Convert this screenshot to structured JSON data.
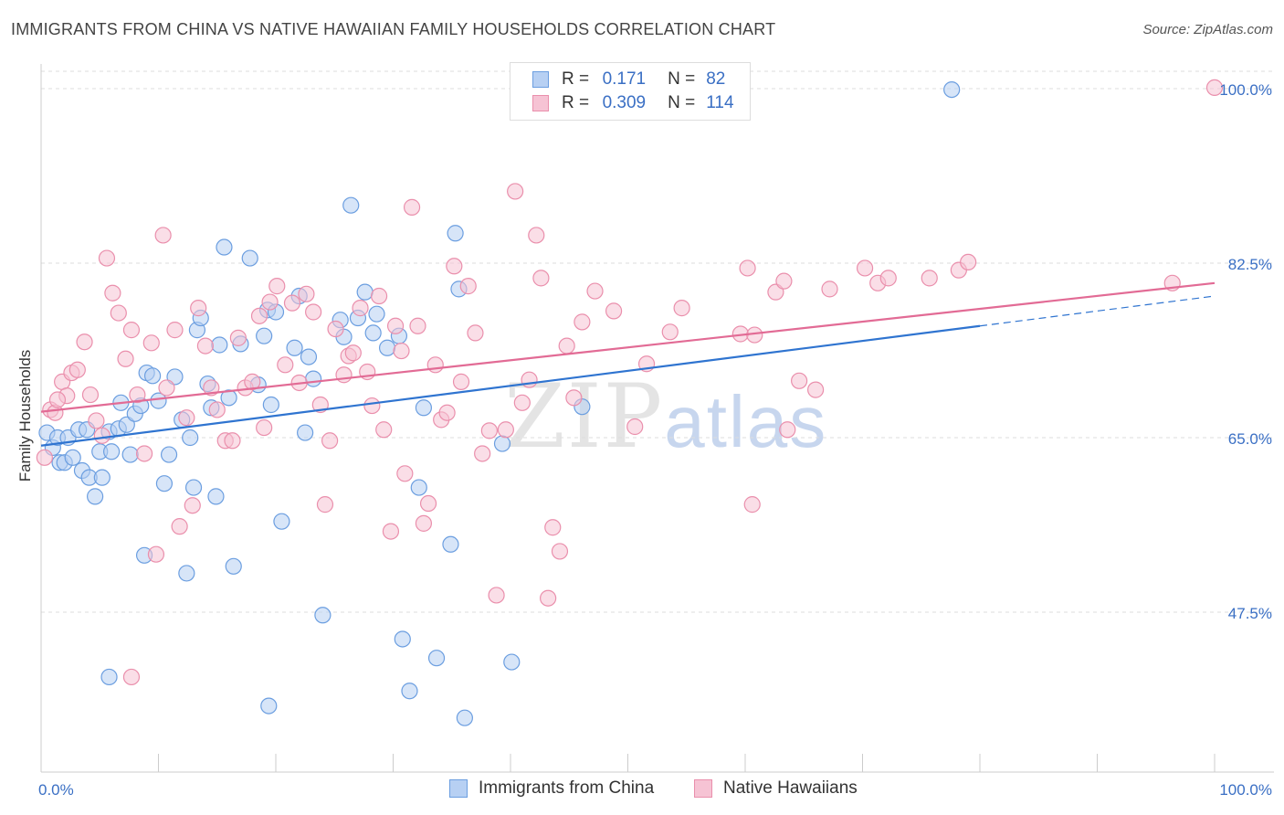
{
  "title": "IMMIGRANTS FROM CHINA VS NATIVE HAWAIIAN FAMILY HOUSEHOLDS CORRELATION CHART",
  "source": "Source: ZipAtlas.com",
  "watermark": {
    "zip": "ZIP",
    "atlas": "atlas"
  },
  "colors": {
    "blue": "#6b9ee0",
    "blue_fill": "#b7d0f3",
    "blue_line": "#2f74d0",
    "pink": "#ea8fac",
    "pink_fill": "#f6c3d4",
    "pink_line": "#e26b95",
    "axis_text": "#3a6fc4",
    "grid": "#dddddd"
  },
  "legend": {
    "r_label": "R =",
    "n_label": "N =",
    "rows": [
      {
        "r": "0.171",
        "n": "82"
      },
      {
        "r": "0.309",
        "n": "114"
      }
    ]
  },
  "chart_data": {
    "type": "scatter",
    "title": "IMMIGRANTS FROM CHINA VS NATIVE HAWAIIAN FAMILY HOUSEHOLDS CORRELATION CHART",
    "xlabel": "",
    "ylabel": "Family Households",
    "xlim": [
      0,
      100
    ],
    "ylim": [
      31,
      101
    ],
    "x_tick_labels": [
      "0.0%",
      "100.0%"
    ],
    "y_ticks": [
      47.5,
      65.0,
      82.5,
      100.0
    ],
    "y_tick_labels": [
      "47.5%",
      "65.0%",
      "82.5%",
      "100.0%"
    ],
    "grid": true,
    "legend_position": "top-center",
    "series": [
      {
        "name": "Immigrants from China",
        "color": "blue",
        "trend": {
          "x0": 0,
          "y0": 64.2,
          "x1": 80,
          "y1": 76.2,
          "dash_to_x": 100,
          "dash_y": 79.2
        },
        "points": [
          [
            0.5,
            65.5
          ],
          [
            1,
            64
          ],
          [
            1.4,
            65
          ],
          [
            1.6,
            62.5
          ],
          [
            2,
            62.5
          ],
          [
            2.3,
            65
          ],
          [
            2.7,
            63
          ],
          [
            3.2,
            65.8
          ],
          [
            3.5,
            61.7
          ],
          [
            3.9,
            65.8
          ],
          [
            4.1,
            61
          ],
          [
            4.6,
            59.1
          ],
          [
            5,
            63.6
          ],
          [
            5.2,
            61
          ],
          [
            5.8,
            65.6
          ],
          [
            6,
            63.6
          ],
          [
            6.6,
            65.9
          ],
          [
            6.8,
            68.5
          ],
          [
            7.3,
            66.3
          ],
          [
            7.6,
            63.3
          ],
          [
            8,
            67.4
          ],
          [
            8.5,
            68.2
          ],
          [
            8.8,
            53.2
          ],
          [
            9,
            71.5
          ],
          [
            9.5,
            71.2
          ],
          [
            10,
            68.7
          ],
          [
            10.5,
            60.4
          ],
          [
            10.9,
            63.3
          ],
          [
            11.4,
            71.1
          ],
          [
            12,
            66.8
          ],
          [
            12.4,
            51.4
          ],
          [
            12.7,
            65
          ],
          [
            13,
            60
          ],
          [
            13.3,
            75.8
          ],
          [
            13.6,
            77
          ],
          [
            14.2,
            70.4
          ],
          [
            14.5,
            68
          ],
          [
            14.9,
            59.1
          ],
          [
            15.2,
            74.3
          ],
          [
            15.6,
            84.1
          ],
          [
            16,
            69
          ],
          [
            16.4,
            52.1
          ],
          [
            17,
            74.4
          ],
          [
            17.8,
            83
          ],
          [
            18.5,
            70.3
          ],
          [
            19,
            75.2
          ],
          [
            19.3,
            77.8
          ],
          [
            19.6,
            68.3
          ],
          [
            20,
            77.6
          ],
          [
            20.5,
            56.6
          ],
          [
            21.6,
            74
          ],
          [
            22,
            79.2
          ],
          [
            22.5,
            65.5
          ],
          [
            22.8,
            73.1
          ],
          [
            23.2,
            70.9
          ],
          [
            24,
            47.2
          ],
          [
            25.5,
            76.8
          ],
          [
            25.8,
            75.1
          ],
          [
            26.4,
            88.3
          ],
          [
            27,
            77
          ],
          [
            27.6,
            79.6
          ],
          [
            28.3,
            75.5
          ],
          [
            28.6,
            77.4
          ],
          [
            29.5,
            74
          ],
          [
            30.5,
            75.2
          ],
          [
            30.8,
            44.8
          ],
          [
            31.4,
            39.6
          ],
          [
            32.2,
            60
          ],
          [
            32.6,
            68
          ],
          [
            33.7,
            42.9
          ],
          [
            34.9,
            54.3
          ],
          [
            35.3,
            85.5
          ],
          [
            35.6,
            79.9
          ],
          [
            36.1,
            36.9
          ],
          [
            39.3,
            64.4
          ],
          [
            40.1,
            42.5
          ],
          [
            46.1,
            68.1
          ],
          [
            77.6,
            99.9
          ],
          [
            5.8,
            41
          ],
          [
            19.4,
            38.1
          ]
        ]
      },
      {
        "name": "Native Hawaiians",
        "color": "pink",
        "trend": {
          "x0": 0,
          "y0": 67.6,
          "x1": 100,
          "y1": 80.5
        },
        "points": [
          [
            0.3,
            63
          ],
          [
            0.8,
            67.8
          ],
          [
            1.2,
            67.5
          ],
          [
            1.8,
            70.6
          ],
          [
            2.2,
            69.2
          ],
          [
            2.6,
            71.5
          ],
          [
            3.1,
            71.8
          ],
          [
            3.7,
            74.6
          ],
          [
            4.2,
            69.3
          ],
          [
            4.7,
            66.7
          ],
          [
            5.2,
            65.2
          ],
          [
            5.6,
            83
          ],
          [
            6.1,
            79.5
          ],
          [
            6.6,
            77.5
          ],
          [
            7.2,
            72.9
          ],
          [
            7.7,
            75.8
          ],
          [
            8.2,
            69.3
          ],
          [
            8.8,
            63.4
          ],
          [
            9.4,
            74.5
          ],
          [
            9.8,
            53.3
          ],
          [
            10.4,
            85.3
          ],
          [
            10.7,
            70
          ],
          [
            11.4,
            75.8
          ],
          [
            11.8,
            56.1
          ],
          [
            12.4,
            67
          ],
          [
            12.9,
            58.2
          ],
          [
            13.4,
            78
          ],
          [
            14,
            74.2
          ],
          [
            14.5,
            70
          ],
          [
            15,
            67.8
          ],
          [
            15.7,
            64.7
          ],
          [
            16.3,
            64.7
          ],
          [
            16.8,
            75
          ],
          [
            17.4,
            70
          ],
          [
            18,
            70.6
          ],
          [
            18.6,
            77.2
          ],
          [
            19,
            66
          ],
          [
            19.5,
            78.6
          ],
          [
            20.1,
            80.2
          ],
          [
            20.8,
            72.3
          ],
          [
            21.4,
            78.5
          ],
          [
            22,
            70.5
          ],
          [
            22.6,
            79.4
          ],
          [
            23.2,
            77.6
          ],
          [
            23.8,
            68.3
          ],
          [
            24.2,
            58.3
          ],
          [
            24.6,
            64.7
          ],
          [
            25.1,
            75.9
          ],
          [
            25.8,
            71.3
          ],
          [
            26.2,
            73.2
          ],
          [
            26.6,
            73.5
          ],
          [
            27.2,
            78
          ],
          [
            27.8,
            71.6
          ],
          [
            28.2,
            68.2
          ],
          [
            28.8,
            79.2
          ],
          [
            29.2,
            65.8
          ],
          [
            29.8,
            55.6
          ],
          [
            30.2,
            76.2
          ],
          [
            30.7,
            73.7
          ],
          [
            31,
            61.4
          ],
          [
            31.6,
            88.1
          ],
          [
            32.1,
            76.2
          ],
          [
            32.6,
            56.4
          ],
          [
            33,
            58.4
          ],
          [
            33.6,
            72.3
          ],
          [
            34.1,
            66.8
          ],
          [
            34.6,
            67.5
          ],
          [
            35.2,
            82.2
          ],
          [
            35.8,
            70.6
          ],
          [
            36.4,
            80.2
          ],
          [
            37,
            75.5
          ],
          [
            37.6,
            63.4
          ],
          [
            38.2,
            65.7
          ],
          [
            38.8,
            49.2
          ],
          [
            39.6,
            65.8
          ],
          [
            40.4,
            89.7
          ],
          [
            41,
            68.5
          ],
          [
            41.6,
            70.8
          ],
          [
            42.2,
            85.3
          ],
          [
            42.6,
            81
          ],
          [
            43.2,
            48.9
          ],
          [
            43.6,
            56
          ],
          [
            44.2,
            53.6
          ],
          [
            44.8,
            74.2
          ],
          [
            45.4,
            69
          ],
          [
            46.1,
            76.6
          ],
          [
            47.2,
            79.7
          ],
          [
            48.8,
            77.7
          ],
          [
            50.6,
            66.1
          ],
          [
            51.6,
            72.4
          ],
          [
            53.6,
            75.6
          ],
          [
            54.6,
            78
          ],
          [
            59.6,
            75.4
          ],
          [
            60.2,
            82
          ],
          [
            60.6,
            58.3
          ],
          [
            60.8,
            75.3
          ],
          [
            62.6,
            79.6
          ],
          [
            63.3,
            80.7
          ],
          [
            63.6,
            65.8
          ],
          [
            64.6,
            70.7
          ],
          [
            66,
            69.8
          ],
          [
            67.2,
            79.9
          ],
          [
            70.2,
            82
          ],
          [
            71.3,
            80.5
          ],
          [
            72.2,
            81
          ],
          [
            75.7,
            81
          ],
          [
            78.2,
            81.8
          ],
          [
            79,
            82.6
          ],
          [
            96.4,
            80.5
          ],
          [
            100,
            100.1
          ],
          [
            1.4,
            68.8
          ],
          [
            7.7,
            41
          ]
        ]
      }
    ]
  },
  "bottom_legend": [
    "Immigrants from China",
    "Native Hawaiians"
  ]
}
